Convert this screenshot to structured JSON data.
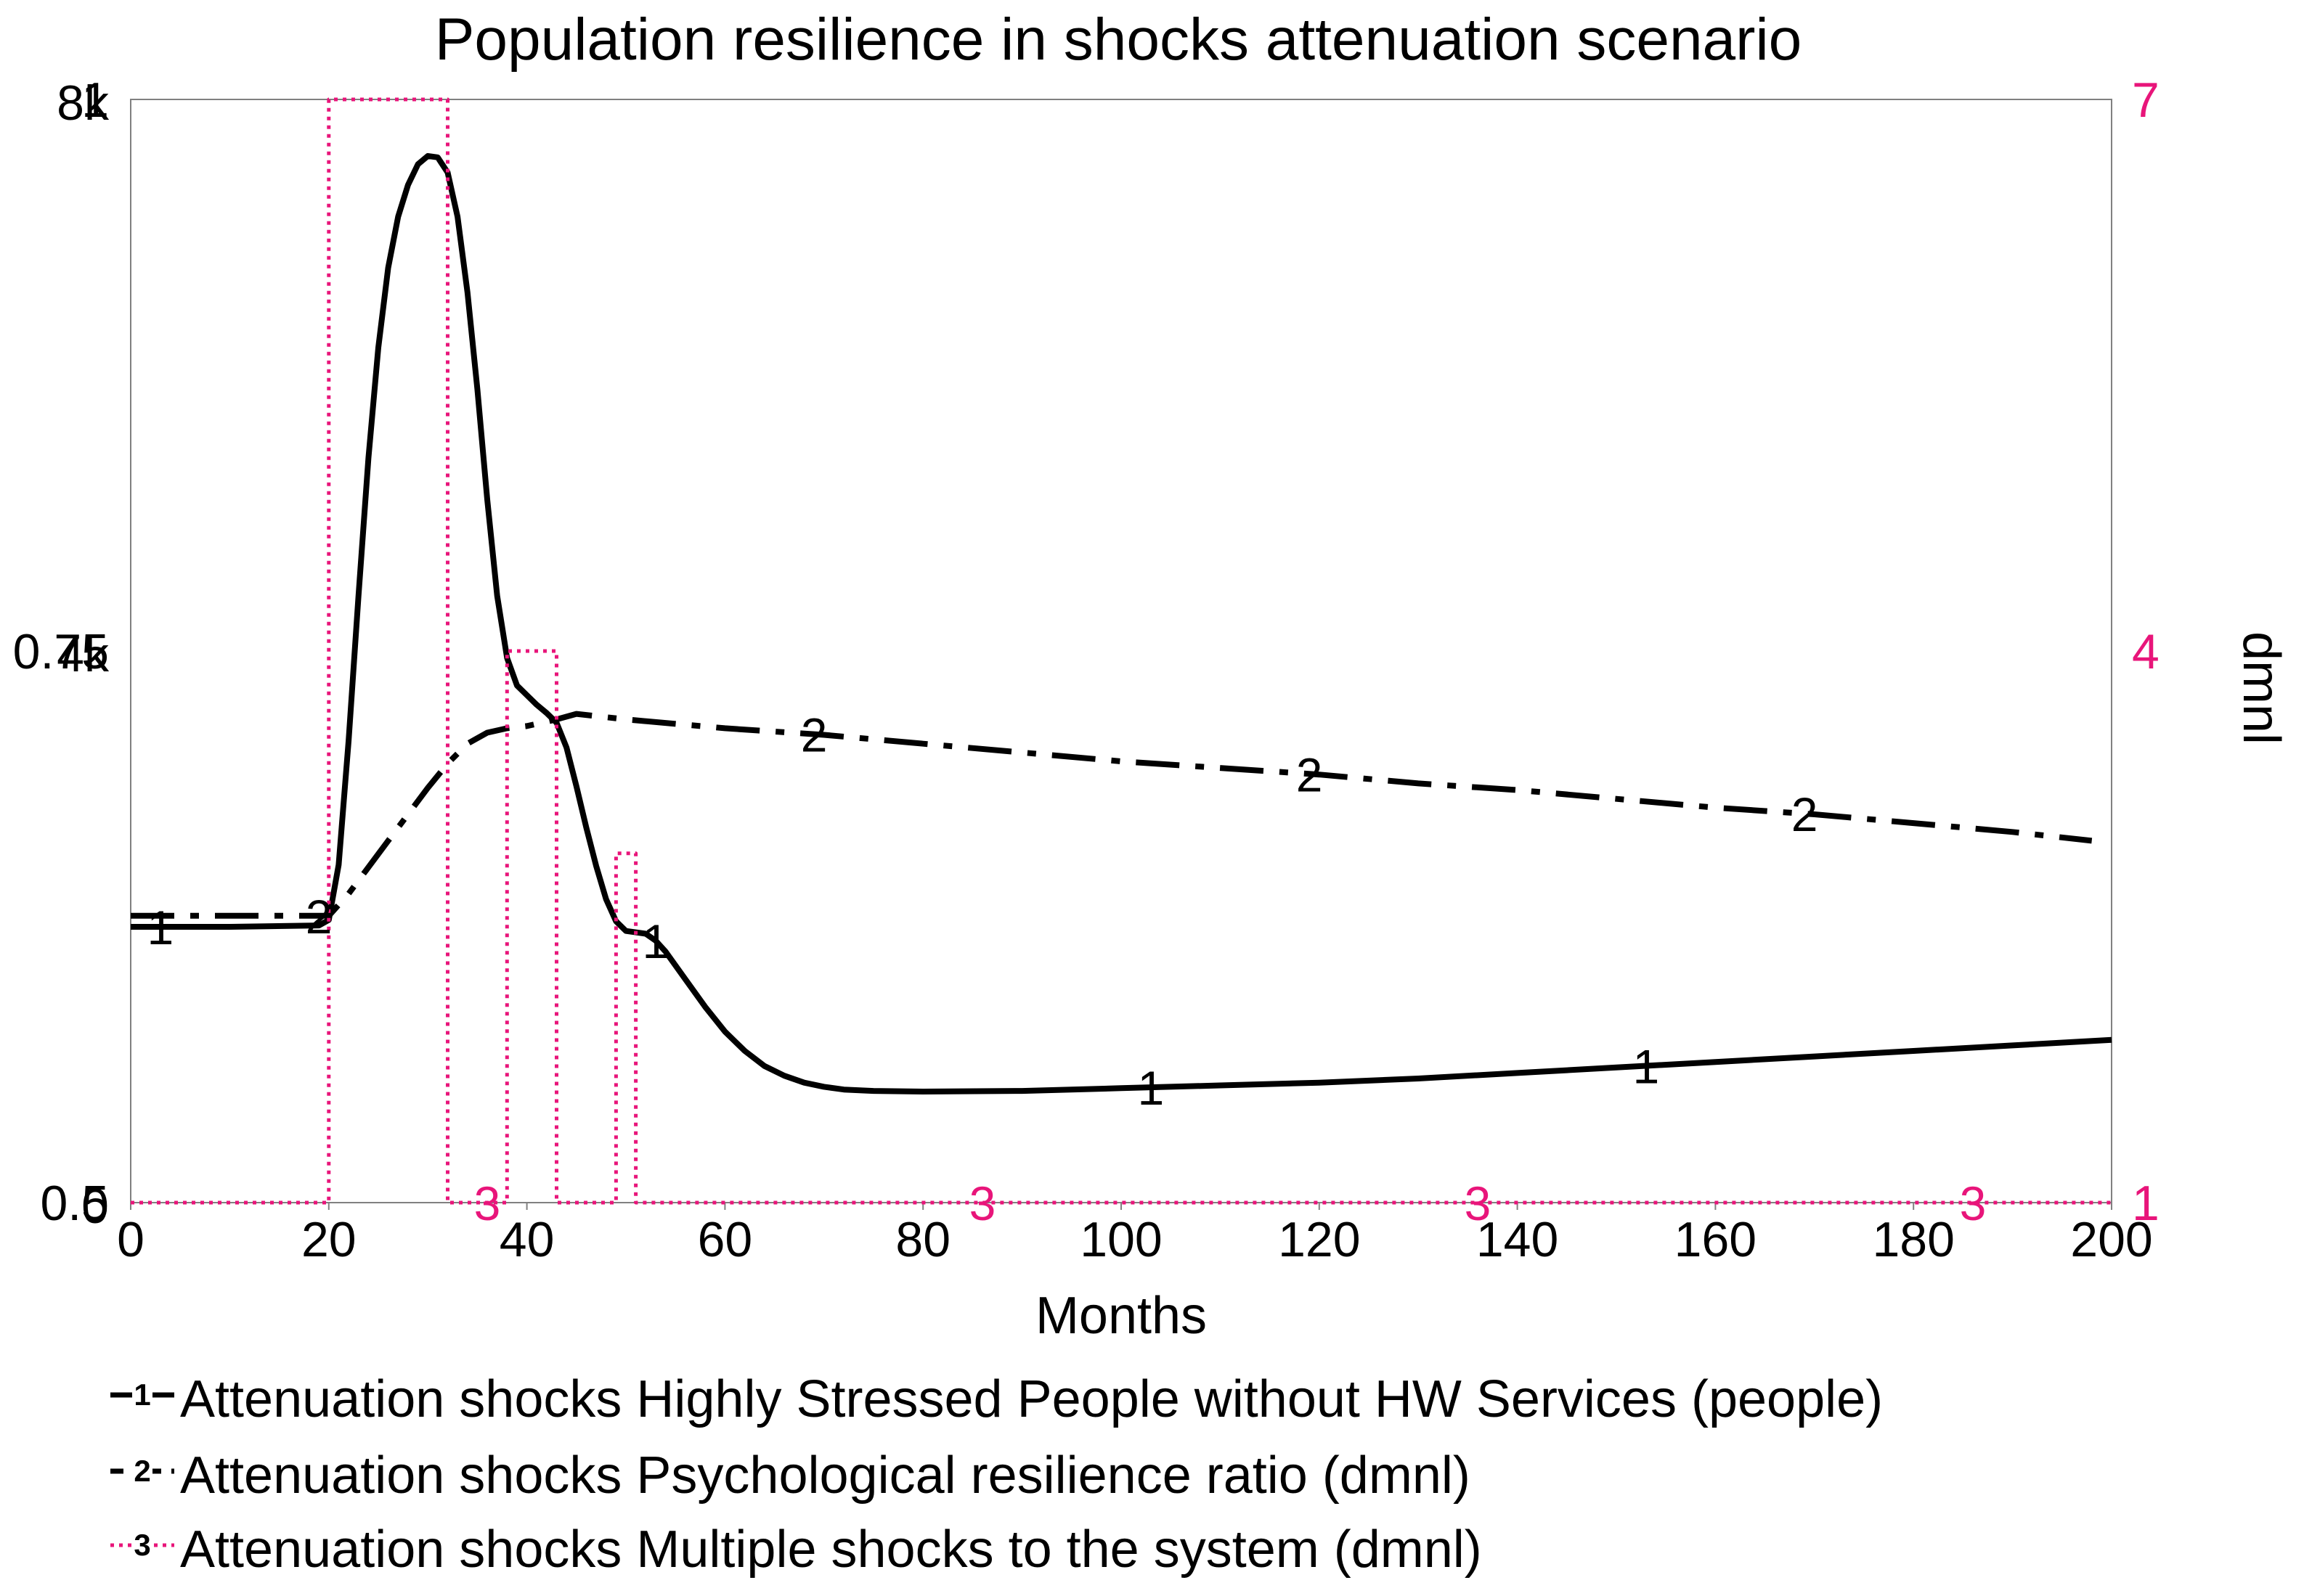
{
  "chart_data": {
    "type": "line",
    "title": "Population resilience in shocks attenuation scenario",
    "xlabel": "Months",
    "right_axis_label": "dmnl",
    "x_ticks": [
      0,
      20,
      40,
      60,
      80,
      100,
      120,
      140,
      160,
      180,
      200
    ],
    "xlim": [
      0,
      200
    ],
    "axis_1": {
      "ylim": [
        0,
        8000
      ],
      "tick_values": [
        0,
        4000,
        8000
      ],
      "tick_labels": [
        "0",
        "4k",
        "8k"
      ]
    },
    "axis_2": {
      "ylim": [
        0.5,
        1
      ],
      "tick_values": [
        0.5,
        0.75,
        1
      ],
      "tick_labels": [
        "0.5",
        "0.75",
        "1"
      ]
    },
    "axis_3": {
      "ylim": [
        1,
        7
      ],
      "tick_values": [
        1,
        4,
        7
      ],
      "tick_labels": [
        "1",
        "4",
        "7"
      ]
    },
    "series": [
      {
        "id": "1",
        "marker_label": "1",
        "name": "Attenuation shocks Highly Stressed People without HW Services (people)",
        "axis": "axis_1",
        "color": "#000000",
        "style": "solid",
        "marker_x": [
          3,
          53,
          103,
          153
        ],
        "x": [
          0,
          10,
          19,
          20,
          21,
          22,
          23,
          24,
          25,
          26,
          27,
          28,
          29,
          30,
          31,
          32,
          33,
          34,
          35,
          36,
          37,
          38,
          39,
          40,
          41,
          42,
          43,
          44,
          45,
          46,
          47,
          48,
          49,
          50,
          51,
          52,
          53,
          54,
          55,
          56,
          58,
          60,
          62,
          64,
          66,
          68,
          70,
          72,
          75,
          80,
          90,
          100,
          110,
          120,
          130,
          140,
          150,
          160,
          170,
          180,
          190,
          200
        ],
        "y": [
          2000,
          2000,
          2010,
          2050,
          2450,
          3350,
          4400,
          5400,
          6200,
          6780,
          7150,
          7380,
          7530,
          7590,
          7580,
          7470,
          7150,
          6600,
          5900,
          5100,
          4400,
          3950,
          3750,
          3680,
          3610,
          3550,
          3480,
          3300,
          3020,
          2720,
          2440,
          2200,
          2040,
          1970,
          1960,
          1950,
          1900,
          1820,
          1720,
          1620,
          1420,
          1240,
          1100,
          990,
          920,
          870,
          840,
          820,
          810,
          805,
          810,
          830,
          850,
          870,
          900,
          940,
          980,
          1020,
          1060,
          1100,
          1140,
          1180
        ]
      },
      {
        "id": "2",
        "marker_label": "2",
        "name": "Attenuation shocks Psychological resilience ratio (dmnl)",
        "axis": "axis_2",
        "color": "#000000",
        "style": "dashdot",
        "marker_x": [
          19,
          69,
          119,
          169
        ],
        "x": [
          0,
          10,
          20,
          22,
          24,
          26,
          28,
          30,
          32,
          34,
          36,
          38,
          40,
          42,
          43,
          45,
          50,
          60,
          70,
          80,
          90,
          100,
          110,
          120,
          130,
          140,
          150,
          160,
          170,
          180,
          190,
          198
        ],
        "y": [
          0.63,
          0.63,
          0.63,
          0.64,
          0.652,
          0.664,
          0.676,
          0.688,
          0.699,
          0.708,
          0.713,
          0.715,
          0.716,
          0.718,
          0.719,
          0.7215,
          0.719,
          0.715,
          0.712,
          0.708,
          0.704,
          0.7,
          0.697,
          0.694,
          0.69,
          0.687,
          0.683,
          0.679,
          0.676,
          0.672,
          0.668,
          0.664
        ]
      },
      {
        "id": "3",
        "marker_label": "3",
        "name": "Attenuation shocks Multiple shocks to the system (dmnl)",
        "axis": "axis_3",
        "color": "#e8157a",
        "style": "dotted",
        "marker_x": [
          36,
          86,
          136,
          186
        ],
        "x": [
          0,
          20,
          20,
          32,
          32,
          38,
          38,
          43,
          43,
          49,
          49,
          51,
          51,
          200
        ],
        "y": [
          1,
          1,
          7.3,
          7.3,
          1,
          1,
          4,
          4,
          1,
          1,
          2.9,
          2.9,
          1,
          1
        ]
      }
    ]
  }
}
